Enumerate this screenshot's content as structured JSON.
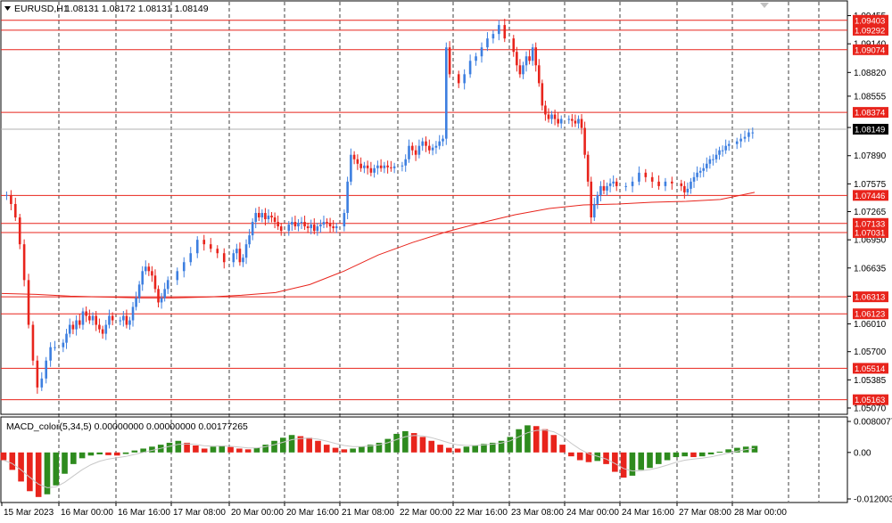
{
  "header": {
    "symbol_label": "EURUSD,H1",
    "ohlc": "1.08131 1.08172 1.08131 1.08149",
    "macd_label": "MACD_color(5,34,5) 0.00000000 0.00000000 0.00177265"
  },
  "colors": {
    "bull": "#3d7fe0",
    "bear": "#e8241c",
    "level": "#e8241c",
    "ma": "#e8241c",
    "macd_up": "#2e8b1e",
    "macd_down": "#e8241c",
    "signal": "#c8c8c8",
    "grid": "#000000"
  },
  "icons": {
    "symbol_menu": "triangle-down-icon",
    "scroll_marker": "triangle-down-icon"
  },
  "price_axis": {
    "ticks": [
      "1.09455",
      "1.09140",
      "1.08820",
      "1.08555",
      "1.08205",
      "1.07890",
      "1.07575",
      "1.07265",
      "1.06950",
      "1.06635",
      "1.06320",
      "1.06010",
      "1.05700",
      "1.05385",
      "1.05070"
    ],
    "current_price": "1.08149"
  },
  "levels": [
    "1.09403",
    "1.09292",
    "1.09074",
    "1.08374",
    "1.07446",
    "1.07133",
    "1.07031",
    "1.06313",
    "1.06123",
    "1.05514",
    "1.05163"
  ],
  "macd_axis": [
    "0.0080077",
    "0.00",
    "-0.0120033"
  ],
  "time_axis": [
    "15 Mar 2023",
    "16 Mar 00:00",
    "16 Mar 16:00",
    "17 Mar 08:00",
    "20 Mar 00:00",
    "20 Mar 16:00",
    "21 Mar 08:00",
    "22 Mar 00:00",
    "22 Mar 16:00",
    "23 Mar 08:00",
    "24 Mar 00:00",
    "24 Mar 16:00",
    "27 Mar 08:00",
    "28 Mar 00:00"
  ],
  "chart_data": {
    "type": "candlestick",
    "symbol": "EURUSD",
    "timeframe": "H1",
    "ylim": [
      1.05,
      1.0955
    ],
    "sessions": [
      {
        "label": "15 Mar 2023",
        "values": [
          1.0745,
          1.0735,
          1.072,
          1.069,
          1.065,
          1.06,
          1.056,
          1.053,
          1.054,
          1.056,
          1.0575,
          1.0575
        ]
      },
      {
        "label": "16 Mar 00:00",
        "values": [
          1.058,
          1.059,
          1.06,
          1.0595,
          1.0605,
          1.06,
          1.0615,
          1.061,
          1.0605,
          1.061,
          1.06,
          1.0595,
          1.059,
          1.06,
          1.061,
          1.0605
        ]
      },
      {
        "label": "16 Mar 16:00",
        "values": [
          1.0605,
          1.061,
          1.06,
          1.0605,
          1.062,
          1.063,
          1.0645,
          1.066,
          1.0665,
          1.066,
          1.0655,
          1.064,
          1.0625,
          1.063,
          1.064,
          1.065
        ]
      },
      {
        "label": "17 Mar 08:00",
        "values": [
          1.066,
          1.067,
          1.068,
          1.0695,
          1.069,
          1.0685,
          1.068,
          1.067
        ]
      },
      {
        "label": "20 Mar 00:00",
        "values": [
          1.068,
          1.0685,
          1.067,
          1.0675,
          1.069,
          1.07,
          1.0715,
          1.0725,
          1.072,
          1.0725,
          1.0718,
          1.0722,
          1.072,
          1.0715,
          1.071,
          1.0705
        ]
      },
      {
        "label": "20 Mar 16:00",
        "values": [
          1.0712,
          1.0715,
          1.071,
          1.0714,
          1.0715,
          1.071,
          1.0708,
          1.0712,
          1.0705,
          1.071,
          1.0712,
          1.0715,
          1.0714,
          1.071,
          1.0708,
          1.071
        ]
      },
      {
        "label": "21 Mar 08:00",
        "values": [
          1.0725,
          1.076,
          1.079,
          1.0785,
          1.078,
          1.0775,
          1.0778,
          1.0775,
          1.077,
          1.0775,
          1.0778,
          1.0775,
          1.0778,
          1.0776,
          1.0775,
          1.0777
        ]
      },
      {
        "label": "22 Mar 00:00",
        "values": [
          1.0778,
          1.0785,
          1.08,
          1.0795,
          1.079,
          1.08,
          1.0805,
          1.08,
          1.0795,
          1.0798,
          1.08,
          1.0805,
          1.0808,
          1.091,
          1.088
        ]
      },
      {
        "label": "22 Mar 16:00",
        "values": [
          1.087,
          1.088,
          1.0895,
          1.09,
          1.091,
          1.092,
          1.0925,
          1.0935,
          1.092
        ]
      },
      {
        "label": "23 Mar 08:00",
        "values": [
          1.0905,
          1.089,
          1.088,
          1.089,
          1.09,
          1.0895,
          1.091,
          1.089,
          1.087,
          1.0845,
          1.0835,
          1.083,
          1.0835,
          1.083,
          1.0825,
          1.083
        ]
      },
      {
        "label": "24 Mar 00:00",
        "values": [
          1.083,
          1.0828,
          1.0825,
          1.083,
          1.082,
          1.079,
          1.076,
          1.072,
          1.0735,
          1.0745,
          1.0755,
          1.075,
          1.0755,
          1.0758,
          1.076,
          1.0755
        ]
      },
      {
        "label": "24 Mar 16:00",
        "values": [
          1.0755,
          1.076,
          1.077,
          1.0765,
          1.076,
          1.0755,
          1.076,
          1.0758
        ]
      },
      {
        "label": "27 Mar 08:00",
        "values": [
          1.0755,
          1.0748,
          1.0752,
          1.076,
          1.0765,
          1.077,
          1.0772,
          1.0775,
          1.078,
          1.0785,
          1.0785,
          1.079,
          1.0795,
          1.0795,
          1.08,
          1.0802
        ]
      },
      {
        "label": "28 Mar 00:00",
        "values": [
          1.0805,
          1.0808,
          1.081,
          1.0815,
          1.0815
        ]
      }
    ],
    "moving_average": [
      1.0635,
      1.0634,
      1.0632,
      1.0631,
      1.063,
      1.063,
      1.0631,
      1.0633,
      1.0636,
      1.0645,
      1.066,
      1.0678,
      1.0692,
      1.0704,
      1.0714,
      1.0723,
      1.073,
      1.0734,
      1.0735,
      1.0737,
      1.0738,
      1.074,
      1.0748
    ],
    "levels": [
      1.09403,
      1.09292,
      1.09074,
      1.08374,
      1.07446,
      1.07133,
      1.07031,
      1.06313,
      1.06123,
      1.05514,
      1.05163
    ],
    "macd": {
      "ylim": [
        -0.0120033,
        0.0080077
      ],
      "values": [
        -0.002,
        -0.0045,
        -0.0075,
        -0.01,
        -0.0115,
        -0.0108,
        -0.0085,
        -0.0055,
        -0.003,
        -0.0015,
        -0.0008,
        -0.0005,
        -0.0007,
        -0.0008,
        -0.0004,
        0.0005,
        0.001,
        0.0015,
        0.002,
        0.0025,
        0.003,
        0.0025,
        0.0018,
        0.001,
        0.0015,
        0.0018,
        0.0014,
        0.001,
        0.0008,
        0.0012,
        0.002,
        0.003,
        0.0038,
        0.0045,
        0.0042,
        0.0038,
        0.003,
        0.002,
        0.0012,
        0.0008,
        0.001,
        0.0015,
        0.002,
        0.0025,
        0.0035,
        0.0048,
        0.0055,
        0.005,
        0.004,
        0.003,
        0.002,
        0.0012,
        0.001,
        0.0015,
        0.0018,
        0.0022,
        0.0025,
        0.003,
        0.004,
        0.006,
        0.007,
        0.0068,
        0.006,
        0.0045,
        0.002,
        -0.001,
        -0.002,
        -0.0025,
        -0.0022,
        -0.003,
        -0.005,
        -0.0065,
        -0.006,
        -0.0045,
        -0.004,
        -0.003,
        -0.002,
        -0.0012,
        -0.001,
        -0.0012,
        -0.001,
        -0.0005,
        0.0002,
        0.0008,
        0.0012,
        0.0015,
        0.0017
      ]
    }
  }
}
